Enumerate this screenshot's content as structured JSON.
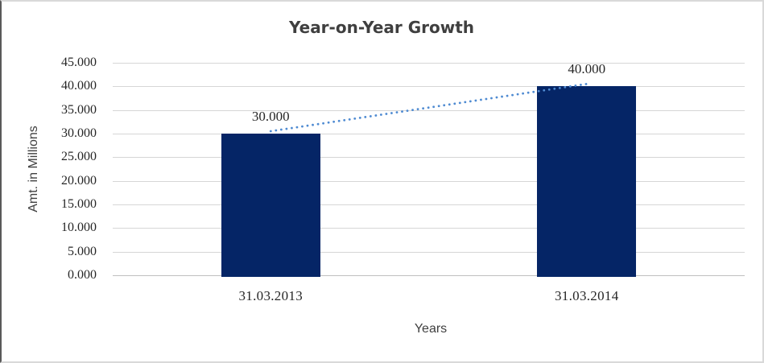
{
  "chart_data": {
    "type": "bar",
    "title": "Year-on-Year Growth",
    "xlabel": "Years",
    "ylabel": "Amt. in Millions",
    "categories": [
      "31.03.2013",
      "31.03.2014"
    ],
    "series": [
      {
        "values": [
          30,
          40
        ],
        "value_labels": [
          "30.000",
          "40.000"
        ]
      }
    ],
    "ylim": [
      0,
      45
    ],
    "ytick_values": [
      0,
      5,
      10,
      15,
      20,
      25,
      30,
      35,
      40,
      45
    ],
    "ytick_labels": [
      "0.000",
      "5.000",
      "10.000",
      "15.000",
      "20.000",
      "25.000",
      "30.000",
      "35.000",
      "40.000",
      "45.000"
    ],
    "grid": true,
    "legend_position": "none",
    "trendline": {
      "style": "dotted",
      "connects": "bar-tops",
      "from_value": 30,
      "to_value": 40
    },
    "colors": {
      "bar_fill": "#052566",
      "trendline": "#4f8bd2",
      "gridline": "#d6d6d6",
      "axis_line": "#bfbfbf",
      "title_text": "#3f3f3f",
      "tick_text": "#262626"
    }
  }
}
